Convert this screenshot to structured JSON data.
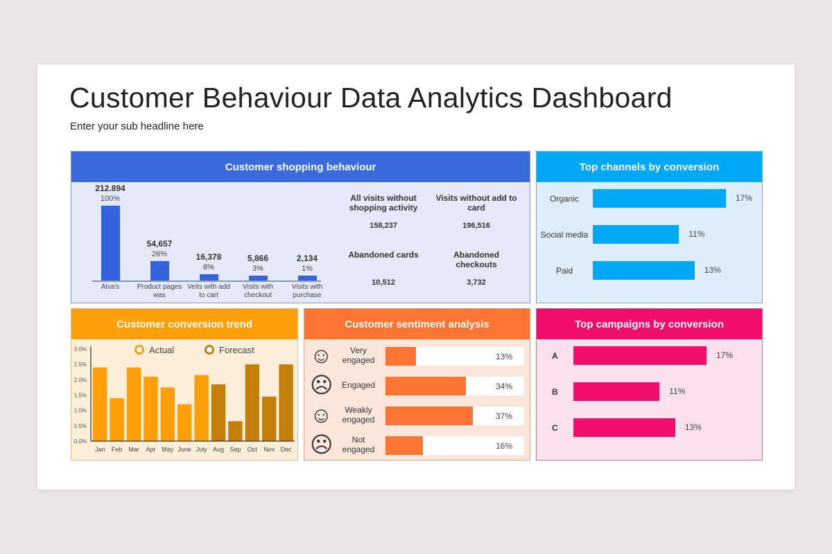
{
  "header": {
    "title": "Customer Behaviour Data Analytics Dashboard",
    "subtitle": "Enter your sub headline here"
  },
  "colors": {
    "blue": "#3a6bdc",
    "cyan": "#00a8f5",
    "orange": "#ffa00a",
    "forecast": "#c47f0a",
    "sentiment": "#ff7433",
    "pink": "#f20e6b"
  },
  "shopping": {
    "title": "Customer shopping behaviour",
    "bars": [
      {
        "value": "212.894",
        "pct": "100%",
        "p": 100,
        "label": "Alva's"
      },
      {
        "value": "54,657",
        "pct": "26%",
        "p": 26,
        "label": "Product pages was"
      },
      {
        "value": "16,378",
        "pct": "8%",
        "p": 8,
        "label": "Veits with add to cart"
      },
      {
        "value": "5,866",
        "pct": "3%",
        "p": 3,
        "label": "Visits with checkout"
      },
      {
        "value": "2,134",
        "pct": "1%",
        "p": 1,
        "label": "Visits with purchase"
      }
    ],
    "stats": [
      {
        "label": "All visits without shopping activity",
        "value": "158,237"
      },
      {
        "label": "Visits without add to card",
        "value": "196,516"
      },
      {
        "label": "Abandoned cards",
        "value": "10,512"
      },
      {
        "label": "Abandoned checkouts",
        "value": "3,732"
      }
    ]
  },
  "channels": {
    "title": "Top channels by conversion",
    "items": [
      {
        "label": "Organic",
        "value": 17,
        "text": "17%"
      },
      {
        "label": "Social media",
        "value": 11,
        "text": "11%"
      },
      {
        "label": "Paid",
        "value": 13,
        "text": "13%"
      }
    ]
  },
  "campaigns": {
    "title": "Top campaigns by conversion",
    "items": [
      {
        "label": "A",
        "value": 17,
        "text": "17%"
      },
      {
        "label": "B",
        "value": 11,
        "text": "11%"
      },
      {
        "label": "C",
        "value": 13,
        "text": "13%"
      }
    ]
  },
  "sentiment": {
    "title": "Customer sentiment analysis",
    "items": [
      {
        "label": "Very engaged",
        "icon": "smile",
        "value": 13,
        "text": "13%"
      },
      {
        "label": "Engaged",
        "icon": "frown",
        "value": 34,
        "text": "34%"
      },
      {
        "label": "Weakly engaged",
        "icon": "grin",
        "value": 37,
        "text": "37%"
      },
      {
        "label": "Not engaged",
        "icon": "frown",
        "value": 16,
        "text": "16%"
      }
    ]
  },
  "chart_data": {
    "type": "bar",
    "title": "Customer conversion trend",
    "categories": [
      "Jan",
      "Feb",
      "Mar",
      "Apr",
      "May",
      "June",
      "July",
      "Aug",
      "Sep",
      "Oct",
      "Nov",
      "Dec"
    ],
    "values": [
      2.4,
      1.4,
      2.4,
      2.1,
      1.75,
      1.2,
      2.15,
      1.85,
      0.65,
      2.5,
      1.45,
      2.5
    ],
    "series_type": [
      "Actual",
      "Actual",
      "Actual",
      "Actual",
      "Actual",
      "Actual",
      "Actual",
      "Forecast",
      "Forecast",
      "Forecast",
      "Forecast",
      "Forecast"
    ],
    "legend": [
      "Actual",
      "Forecast"
    ],
    "yticks": [
      "0.0%",
      "0.5%",
      "1.0%",
      "1.5%",
      "2.0%",
      "2.5%",
      "3.0%"
    ],
    "ylim": [
      0,
      3
    ]
  }
}
